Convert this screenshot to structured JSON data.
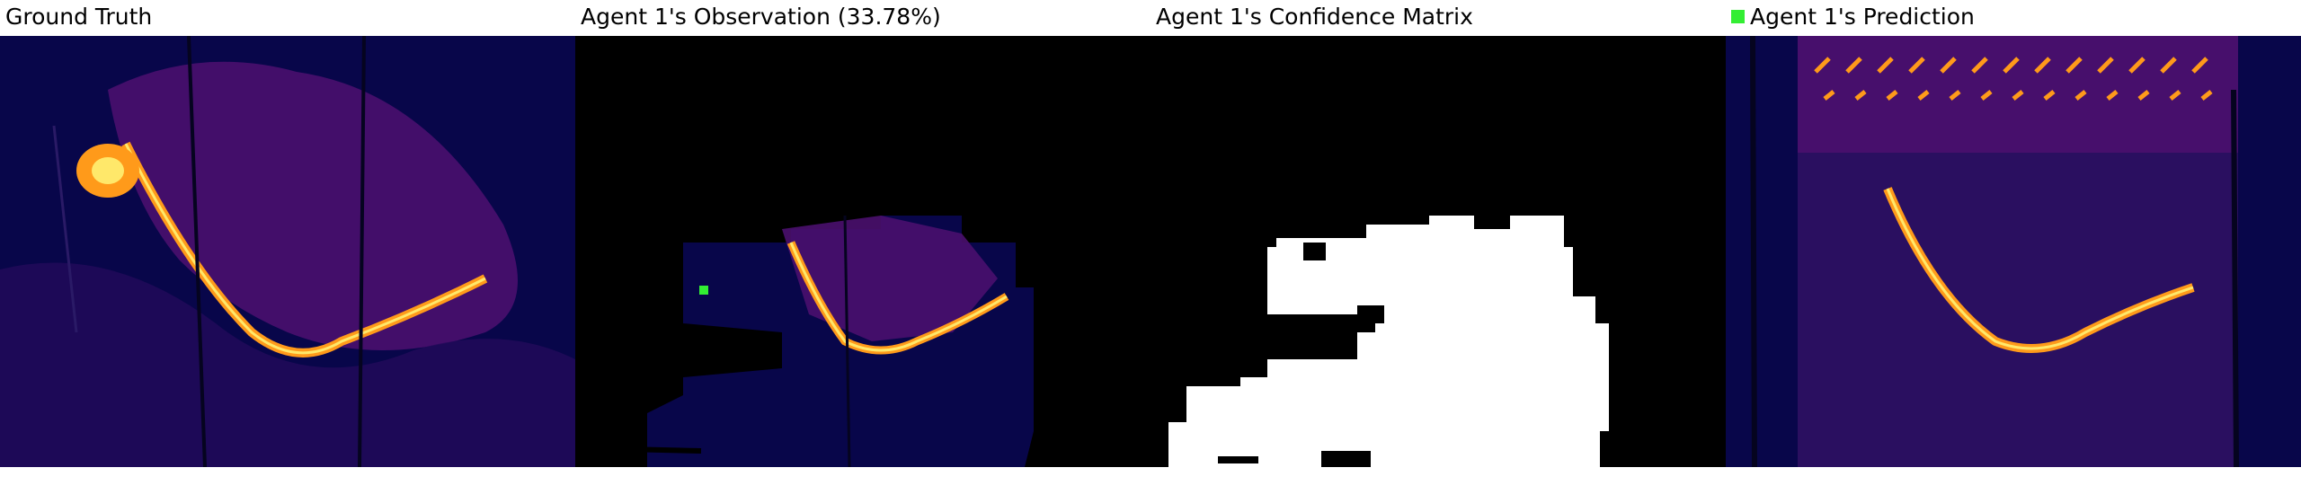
{
  "panels": [
    {
      "title": "Ground Truth"
    },
    {
      "title": "Agent 1's Observation (33.78%)"
    },
    {
      "title": "Agent 1's Confidence Matrix"
    },
    {
      "title": "Agent 1's Prediction"
    }
  ],
  "colors": {
    "background": "#08064a",
    "mid": "#4a0f6e",
    "hot": "#ff9a1a",
    "bright": "#ffe86a",
    "mask_known": "#ffffff",
    "mask_unknown": "#000000",
    "agent_marker": "#33ee33"
  }
}
